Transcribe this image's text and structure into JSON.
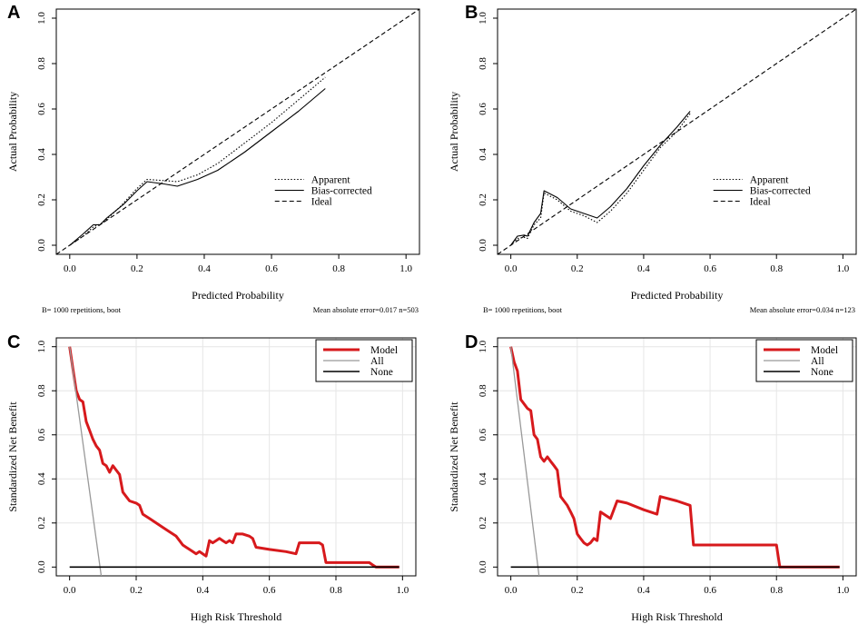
{
  "chart_data": [
    {
      "panel": "A",
      "type": "line",
      "xlabel": "Predicted Probability",
      "ylabel": "Actual Probability",
      "xlim": [
        -0.04,
        1.04
      ],
      "ylim": [
        -0.04,
        1.04
      ],
      "xticks": [
        0.0,
        0.2,
        0.4,
        0.6,
        0.8,
        1.0
      ],
      "xtick_labels": [
        "0.0",
        "0.2",
        "0.4",
        "0.6",
        "0.8",
        "1.0"
      ],
      "yticks": [
        0.0,
        0.2,
        0.4,
        0.6,
        0.8,
        1.0
      ],
      "ytick_labels": [
        "0.0",
        "0.2",
        "0.4",
        "0.6",
        "0.8",
        "1.0"
      ],
      "footnote_left": "B= 1000 repetitions, boot",
      "footnote_right": "Mean absolute error=0.017 n=503",
      "legend_position": "lower-right",
      "series": [
        {
          "name": "Apparent",
          "style": "dotted",
          "color": "#000000",
          "x": [
            0.0,
            0.04,
            0.07,
            0.1,
            0.15,
            0.2,
            0.23,
            0.28,
            0.32,
            0.38,
            0.44,
            0.52,
            0.6,
            0.68,
            0.76
          ],
          "y": [
            0.0,
            0.04,
            0.08,
            0.1,
            0.17,
            0.25,
            0.29,
            0.285,
            0.28,
            0.31,
            0.36,
            0.45,
            0.54,
            0.64,
            0.74
          ]
        },
        {
          "name": "Bias-corrected",
          "style": "solid",
          "color": "#000000",
          "x": [
            0.0,
            0.04,
            0.07,
            0.09,
            0.11,
            0.16,
            0.2,
            0.23,
            0.28,
            0.32,
            0.38,
            0.44,
            0.52,
            0.6,
            0.68,
            0.76
          ],
          "y": [
            0.0,
            0.05,
            0.09,
            0.09,
            0.12,
            0.18,
            0.24,
            0.28,
            0.27,
            0.26,
            0.29,
            0.33,
            0.41,
            0.5,
            0.59,
            0.69
          ]
        },
        {
          "name": "Ideal",
          "style": "dashed",
          "color": "#000000",
          "x": [
            -0.04,
            1.04
          ],
          "y": [
            -0.04,
            1.04
          ]
        }
      ]
    },
    {
      "panel": "B",
      "type": "line",
      "xlabel": "Predicted Probability",
      "ylabel": "Actual Probability",
      "xlim": [
        -0.04,
        1.04
      ],
      "ylim": [
        -0.04,
        1.04
      ],
      "xticks": [
        0.0,
        0.2,
        0.4,
        0.6,
        0.8,
        1.0
      ],
      "xtick_labels": [
        "0.0",
        "0.2",
        "0.4",
        "0.6",
        "0.8",
        "1.0"
      ],
      "yticks": [
        0.0,
        0.2,
        0.4,
        0.6,
        0.8,
        1.0
      ],
      "ytick_labels": [
        "0.0",
        "0.2",
        "0.4",
        "0.6",
        "0.8",
        "1.0"
      ],
      "footnote_left": "B= 1000 repetitions, boot",
      "footnote_right": "Mean absolute error=0.034 n=123",
      "legend_position": "lower-right",
      "series": [
        {
          "name": "Apparent",
          "style": "dotted",
          "color": "#000000",
          "x": [
            0.0,
            0.02,
            0.04,
            0.05,
            0.07,
            0.09,
            0.1,
            0.14,
            0.18,
            0.22,
            0.26,
            0.3,
            0.35,
            0.4,
            0.45,
            0.5,
            0.54
          ],
          "y": [
            0.0,
            0.03,
            0.035,
            0.03,
            0.09,
            0.12,
            0.23,
            0.2,
            0.15,
            0.13,
            0.1,
            0.15,
            0.23,
            0.33,
            0.43,
            0.5,
            0.58
          ]
        },
        {
          "name": "Bias-corrected",
          "style": "solid",
          "color": "#000000",
          "x": [
            0.0,
            0.02,
            0.04,
            0.05,
            0.07,
            0.09,
            0.1,
            0.14,
            0.18,
            0.22,
            0.26,
            0.3,
            0.35,
            0.4,
            0.45,
            0.5,
            0.54
          ],
          "y": [
            0.0,
            0.04,
            0.045,
            0.04,
            0.1,
            0.14,
            0.24,
            0.21,
            0.16,
            0.14,
            0.12,
            0.17,
            0.25,
            0.35,
            0.44,
            0.52,
            0.59
          ]
        },
        {
          "name": "Ideal",
          "style": "dashed",
          "color": "#000000",
          "x": [
            -0.04,
            1.04
          ],
          "y": [
            -0.04,
            1.04
          ]
        }
      ]
    },
    {
      "panel": "C",
      "type": "line",
      "xlabel": "High Risk Threshold",
      "ylabel": "Standardized Net Benefit",
      "xlim": [
        -0.04,
        1.04
      ],
      "ylim": [
        -0.04,
        1.04
      ],
      "xticks": [
        0.0,
        0.2,
        0.4,
        0.6,
        0.8,
        1.0
      ],
      "xtick_labels": [
        "0.0",
        "0.2",
        "0.4",
        "0.6",
        "0.8",
        "1.0"
      ],
      "yticks": [
        0.0,
        0.2,
        0.4,
        0.6,
        0.8,
        1.0
      ],
      "ytick_labels": [
        "0.0",
        "0.2",
        "0.4",
        "0.6",
        "0.8",
        "1.0"
      ],
      "grid": true,
      "legend_position": "top-right",
      "series": [
        {
          "name": "Model",
          "style": "solid",
          "color": "#d7191c",
          "x": [
            0.0,
            0.01,
            0.02,
            0.03,
            0.04,
            0.05,
            0.06,
            0.07,
            0.08,
            0.09,
            0.1,
            0.11,
            0.12,
            0.13,
            0.14,
            0.15,
            0.16,
            0.17,
            0.18,
            0.2,
            0.21,
            0.22,
            0.24,
            0.26,
            0.28,
            0.3,
            0.32,
            0.33,
            0.34,
            0.35,
            0.36,
            0.37,
            0.38,
            0.39,
            0.4,
            0.41,
            0.42,
            0.43,
            0.44,
            0.45,
            0.46,
            0.47,
            0.48,
            0.49,
            0.5,
            0.52,
            0.54,
            0.55,
            0.56,
            0.6,
            0.65,
            0.68,
            0.69,
            0.72,
            0.75,
            0.76,
            0.77,
            0.8,
            0.85,
            0.9,
            0.91,
            0.92,
            0.95,
            0.99
          ],
          "y": [
            1.0,
            0.9,
            0.8,
            0.76,
            0.75,
            0.66,
            0.62,
            0.58,
            0.55,
            0.53,
            0.47,
            0.46,
            0.43,
            0.46,
            0.44,
            0.42,
            0.34,
            0.32,
            0.3,
            0.29,
            0.28,
            0.24,
            0.22,
            0.2,
            0.18,
            0.16,
            0.14,
            0.12,
            0.1,
            0.09,
            0.08,
            0.07,
            0.06,
            0.07,
            0.06,
            0.05,
            0.12,
            0.11,
            0.12,
            0.13,
            0.12,
            0.11,
            0.12,
            0.11,
            0.15,
            0.15,
            0.14,
            0.13,
            0.09,
            0.08,
            0.07,
            0.06,
            0.11,
            0.11,
            0.11,
            0.1,
            0.02,
            0.02,
            0.02,
            0.02,
            0.01,
            0.0,
            0.0,
            0.0
          ]
        },
        {
          "name": "All",
          "style": "solid",
          "color": "#999999",
          "x": [
            0.0,
            0.095
          ],
          "y": [
            1.0,
            -0.04
          ]
        },
        {
          "name": "None",
          "style": "solid",
          "color": "#000000",
          "x": [
            0.0,
            0.99
          ],
          "y": [
            0.0,
            0.0
          ]
        }
      ]
    },
    {
      "panel": "D",
      "type": "line",
      "xlabel": "High Risk Threshold",
      "ylabel": "Standardized Net Benefit",
      "xlim": [
        -0.04,
        1.04
      ],
      "ylim": [
        -0.04,
        1.04
      ],
      "xticks": [
        0.0,
        0.2,
        0.4,
        0.6,
        0.8,
        1.0
      ],
      "xtick_labels": [
        "0.0",
        "0.2",
        "0.4",
        "0.6",
        "0.8",
        "1.0"
      ],
      "yticks": [
        0.0,
        0.2,
        0.4,
        0.6,
        0.8,
        1.0
      ],
      "ytick_labels": [
        "0.0",
        "0.2",
        "0.4",
        "0.6",
        "0.8",
        "1.0"
      ],
      "grid": true,
      "legend_position": "top-right",
      "series": [
        {
          "name": "Model",
          "style": "solid",
          "color": "#d7191c",
          "x": [
            0.0,
            0.01,
            0.02,
            0.03,
            0.04,
            0.05,
            0.06,
            0.07,
            0.08,
            0.09,
            0.1,
            0.11,
            0.12,
            0.13,
            0.14,
            0.15,
            0.16,
            0.17,
            0.18,
            0.19,
            0.2,
            0.21,
            0.22,
            0.23,
            0.24,
            0.25,
            0.26,
            0.27,
            0.3,
            0.32,
            0.35,
            0.4,
            0.44,
            0.45,
            0.5,
            0.54,
            0.55,
            0.8,
            0.81,
            0.99
          ],
          "y": [
            1.0,
            0.93,
            0.89,
            0.76,
            0.74,
            0.72,
            0.71,
            0.6,
            0.58,
            0.5,
            0.48,
            0.5,
            0.48,
            0.46,
            0.44,
            0.32,
            0.3,
            0.28,
            0.25,
            0.22,
            0.15,
            0.13,
            0.11,
            0.1,
            0.11,
            0.13,
            0.12,
            0.25,
            0.22,
            0.3,
            0.29,
            0.26,
            0.24,
            0.32,
            0.3,
            0.28,
            0.1,
            0.1,
            0.0,
            0.0
          ]
        },
        {
          "name": "All",
          "style": "solid",
          "color": "#999999",
          "x": [
            0.0,
            0.085
          ],
          "y": [
            1.0,
            -0.04
          ]
        },
        {
          "name": "None",
          "style": "solid",
          "color": "#000000",
          "x": [
            0.0,
            0.99
          ],
          "y": [
            0.0,
            0.0
          ]
        }
      ]
    }
  ]
}
